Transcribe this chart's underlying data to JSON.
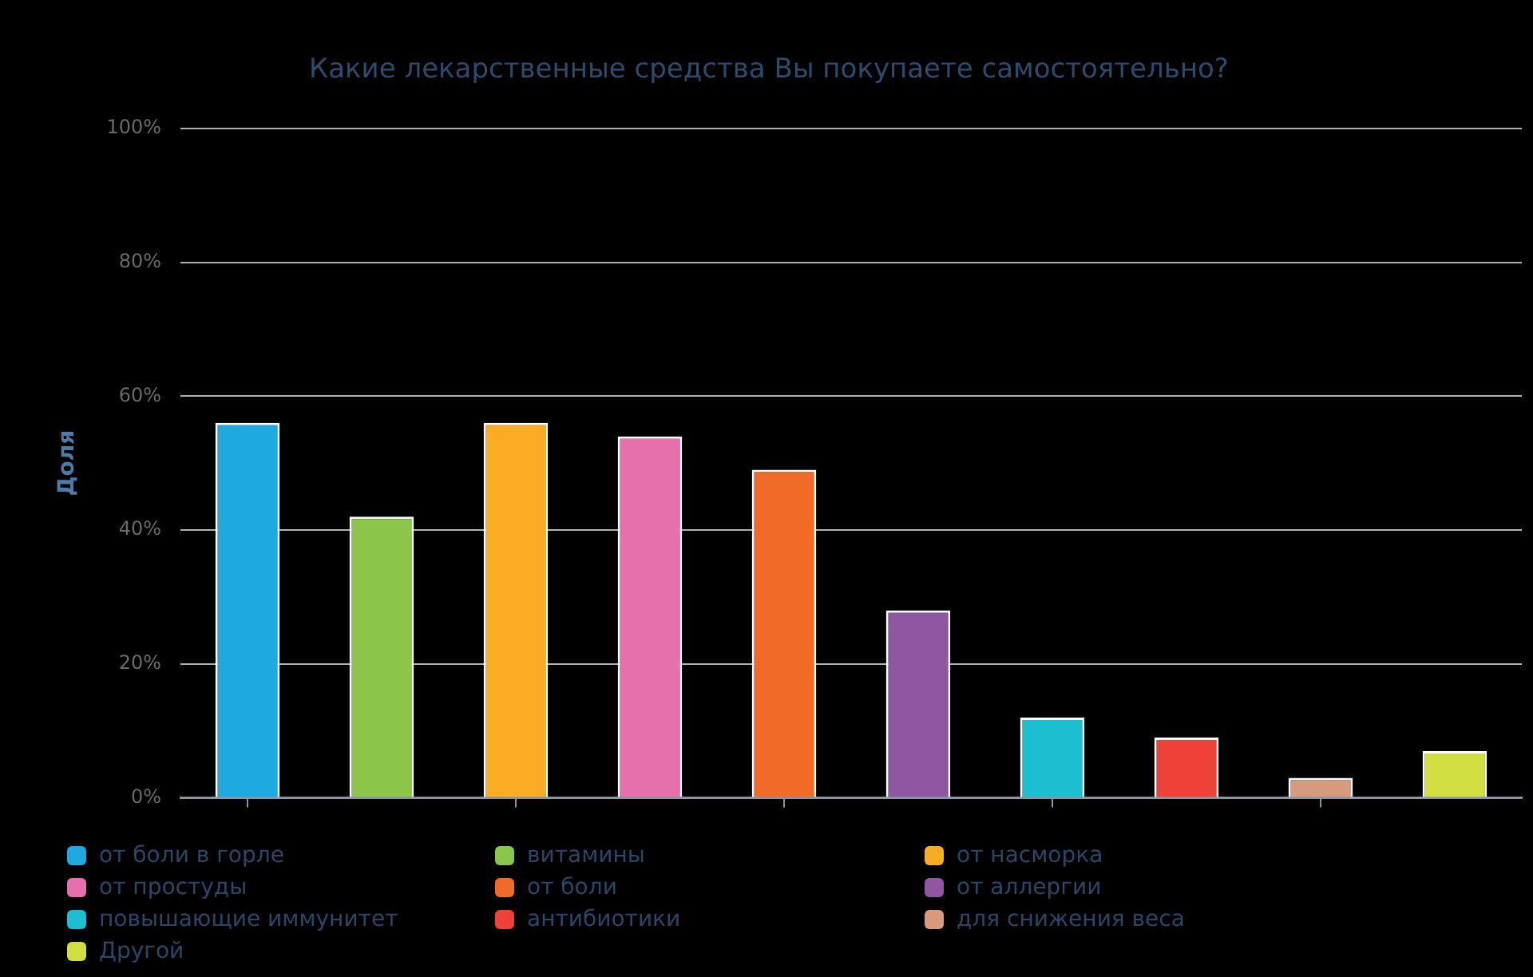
{
  "chart_data": {
    "type": "bar",
    "title": "Какие лекарственные средства Вы покупаете самостоятельно?",
    "ylabel": "Доля",
    "categories": [
      null,
      null,
      null,
      null,
      null,
      null,
      null,
      null,
      null,
      null
    ],
    "series": [
      {
        "name": "от боли в горле",
        "color": "#1fa9e1",
        "values": [
          56,
          null,
          null,
          null,
          null,
          null,
          null,
          null,
          null,
          null
        ]
      },
      {
        "name": "витамины",
        "color": "#8bc54a",
        "values": [
          null,
          42,
          null,
          null,
          null,
          null,
          null,
          null,
          null,
          null
        ]
      },
      {
        "name": "от насморка",
        "color": "#fcab25",
        "values": [
          null,
          null,
          56,
          null,
          null,
          null,
          null,
          null,
          null,
          null
        ]
      },
      {
        "name": "от простуды",
        "color": "#e670ab",
        "values": [
          null,
          null,
          null,
          54,
          null,
          null,
          null,
          null,
          null,
          null
        ]
      },
      {
        "name": "от боли",
        "color": "#f16a26",
        "values": [
          null,
          null,
          null,
          null,
          49,
          null,
          null,
          null,
          null,
          null
        ]
      },
      {
        "name": "от аллергии",
        "color": "#8f56a2",
        "values": [
          null,
          null,
          null,
          null,
          null,
          28,
          null,
          null,
          null,
          null
        ]
      },
      {
        "name": "повышающие иммунитет",
        "color": "#1cbfcf",
        "values": [
          null,
          null,
          null,
          null,
          null,
          null,
          12,
          null,
          null,
          null
        ]
      },
      {
        "name": "антибиотики",
        "color": "#ef4137",
        "values": [
          null,
          null,
          null,
          null,
          null,
          null,
          null,
          9,
          null,
          null
        ]
      },
      {
        "name": "для снижения веса",
        "color": "#d79a7d",
        "values": [
          null,
          null,
          null,
          null,
          null,
          null,
          null,
          null,
          3,
          null
        ]
      },
      {
        "name": "Другой",
        "color": "#d0de3f",
        "values": [
          null,
          null,
          null,
          null,
          null,
          null,
          null,
          null,
          null,
          7
        ]
      }
    ],
    "ylim": [
      0,
      100
    ],
    "yticks": [
      {
        "value": 0,
        "label": "0%"
      },
      {
        "value": 20,
        "label": "20%"
      },
      {
        "value": 40,
        "label": "40%"
      },
      {
        "value": 60,
        "label": "60%"
      },
      {
        "value": 80,
        "label": "80%"
      },
      {
        "value": 100,
        "label": "100%"
      }
    ],
    "grid": "y",
    "legend": "bottom",
    "tick_labels": "y"
  }
}
